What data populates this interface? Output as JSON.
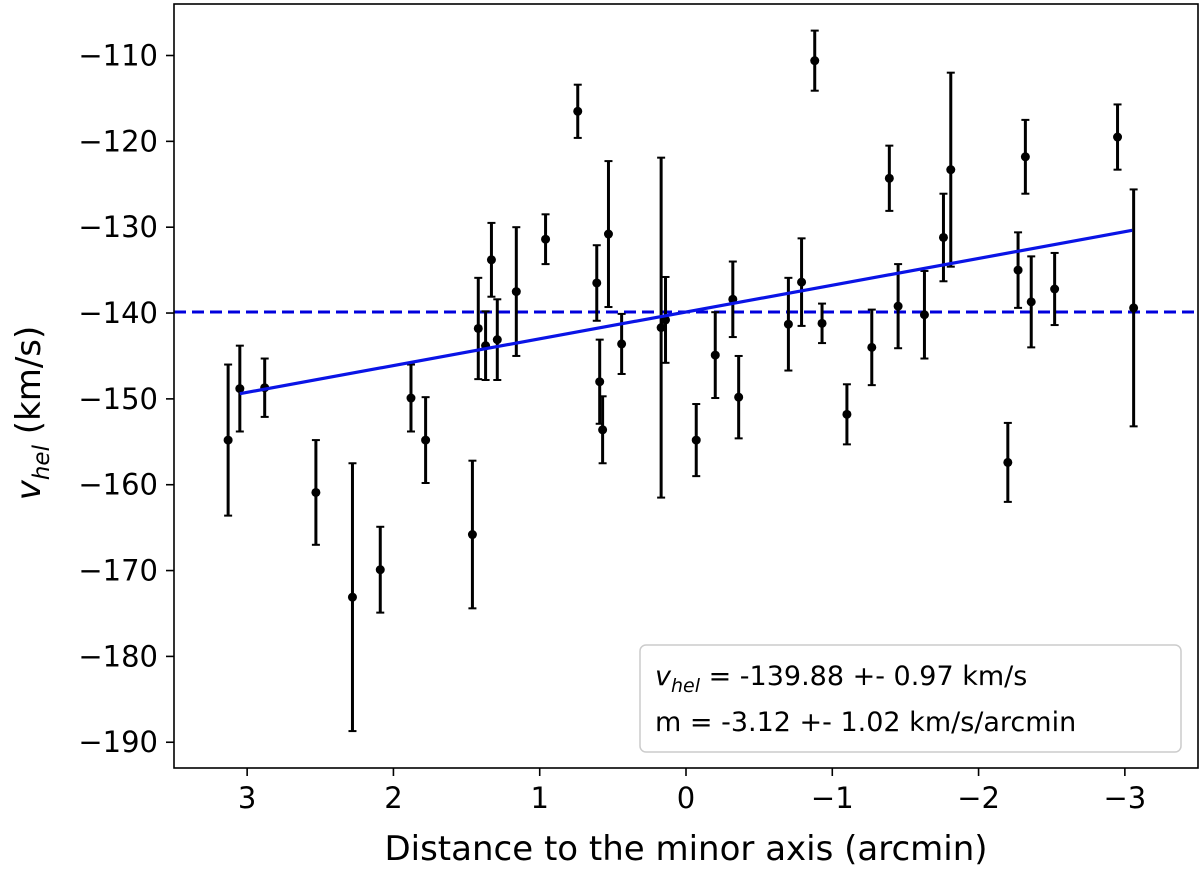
{
  "chart_data": {
    "type": "scatter",
    "title": "",
    "xlabel": "Distance to the minor axis (arcmin)",
    "ylabel": {
      "main": "v",
      "sub": "hel",
      "units": " (km/s)"
    },
    "xlim": [
      3.5,
      -3.5
    ],
    "ylim": [
      -193,
      -104
    ],
    "xticks": [
      {
        "value": 3,
        "label": "3"
      },
      {
        "value": 2,
        "label": "2"
      },
      {
        "value": 1,
        "label": "1"
      },
      {
        "value": 0,
        "label": "0"
      },
      {
        "value": -1,
        "label": "−1"
      },
      {
        "value": -2,
        "label": "−2"
      },
      {
        "value": -3,
        "label": "−3"
      }
    ],
    "yticks": [
      {
        "value": -110,
        "label": "−110"
      },
      {
        "value": -120,
        "label": "−120"
      },
      {
        "value": -130,
        "label": "−130"
      },
      {
        "value": -140,
        "label": "−140"
      },
      {
        "value": -150,
        "label": "−150"
      },
      {
        "value": -160,
        "label": "−160"
      },
      {
        "value": -170,
        "label": "−170"
      },
      {
        "value": -180,
        "label": "−180"
      },
      {
        "value": -190,
        "label": "−190"
      }
    ],
    "points": [
      {
        "x": 3.13,
        "y": -154.8,
        "err": 8.8
      },
      {
        "x": 3.05,
        "y": -148.8,
        "err": 5.0
      },
      {
        "x": 2.88,
        "y": -148.7,
        "err": 3.4
      },
      {
        "x": 2.53,
        "y": -160.9,
        "err": 6.1
      },
      {
        "x": 2.28,
        "y": -173.1,
        "err": 15.6
      },
      {
        "x": 2.09,
        "y": -169.9,
        "err": 5.0
      },
      {
        "x": 1.88,
        "y": -149.9,
        "err": 3.9
      },
      {
        "x": 1.78,
        "y": -154.8,
        "err": 5.0
      },
      {
        "x": 1.46,
        "y": -165.8,
        "err": 8.6
      },
      {
        "x": 1.42,
        "y": -141.8,
        "err": 5.9
      },
      {
        "x": 1.37,
        "y": -143.8,
        "err": 4.0
      },
      {
        "x": 1.33,
        "y": -133.8,
        "err": 4.3
      },
      {
        "x": 1.29,
        "y": -143.1,
        "err": 4.7
      },
      {
        "x": 1.16,
        "y": -137.5,
        "err": 7.5
      },
      {
        "x": 0.96,
        "y": -131.4,
        "err": 2.9
      },
      {
        "x": 0.74,
        "y": -116.5,
        "err": 3.1
      },
      {
        "x": 0.61,
        "y": -136.5,
        "err": 4.4
      },
      {
        "x": 0.59,
        "y": -148.0,
        "err": 4.9
      },
      {
        "x": 0.57,
        "y": -153.6,
        "err": 3.9
      },
      {
        "x": 0.53,
        "y": -130.8,
        "err": 8.5
      },
      {
        "x": 0.44,
        "y": -143.6,
        "err": 3.5
      },
      {
        "x": 0.17,
        "y": -141.7,
        "err": 19.8
      },
      {
        "x": 0.14,
        "y": -140.8,
        "err": 5.0
      },
      {
        "x": -0.07,
        "y": -154.8,
        "err": 4.2
      },
      {
        "x": -0.2,
        "y": -144.9,
        "err": 5.0
      },
      {
        "x": -0.32,
        "y": -138.4,
        "err": 4.4
      },
      {
        "x": -0.36,
        "y": -149.8,
        "err": 4.8
      },
      {
        "x": -0.7,
        "y": -141.3,
        "err": 5.4
      },
      {
        "x": -0.79,
        "y": -136.4,
        "err": 5.1
      },
      {
        "x": -0.88,
        "y": -110.6,
        "err": 3.5
      },
      {
        "x": -0.93,
        "y": -141.2,
        "err": 2.3
      },
      {
        "x": -1.1,
        "y": -151.8,
        "err": 3.5
      },
      {
        "x": -1.27,
        "y": -144.0,
        "err": 4.4
      },
      {
        "x": -1.39,
        "y": -124.3,
        "err": 3.8
      },
      {
        "x": -1.45,
        "y": -139.2,
        "err": 4.9
      },
      {
        "x": -1.63,
        "y": -140.2,
        "err": 5.1
      },
      {
        "x": -1.76,
        "y": -131.2,
        "err": 5.1
      },
      {
        "x": -1.81,
        "y": -123.3,
        "err": 11.3
      },
      {
        "x": -2.2,
        "y": -157.4,
        "err": 4.6
      },
      {
        "x": -2.27,
        "y": -135.0,
        "err": 4.4
      },
      {
        "x": -2.32,
        "y": -121.8,
        "err": 4.3
      },
      {
        "x": -2.36,
        "y": -138.7,
        "err": 5.3
      },
      {
        "x": -2.52,
        "y": -137.2,
        "err": 4.2
      },
      {
        "x": -2.95,
        "y": -119.5,
        "err": 3.8
      },
      {
        "x": -3.06,
        "y": -139.4,
        "err": 13.8
      }
    ],
    "mean_line": {
      "y": -139.88,
      "style": "dashed",
      "color": "#0000dd"
    },
    "fit_line": {
      "x": [
        3.05,
        -3.05
      ],
      "slope": -3.12,
      "intercept": -139.88,
      "color": "#0a14e6"
    },
    "legend": {
      "position": "bottom-right",
      "line1": {
        "var": "v",
        "sub": "hel",
        "text": " = -139.88 +- 0.97 km/s"
      },
      "line2": "m = -3.12 +- 1.02 km/s/arcmin"
    }
  }
}
